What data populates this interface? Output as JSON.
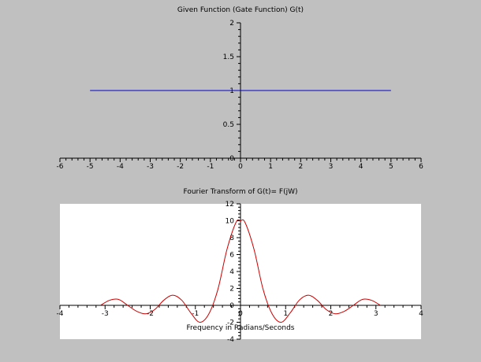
{
  "chart_data": [
    {
      "type": "line",
      "title": "Given Function (Gate Function) G(t)",
      "xlabel": "",
      "ylabel": "",
      "xlim": [
        -6,
        6
      ],
      "ylim": [
        0,
        2
      ],
      "xticks": [
        "-6",
        "-5",
        "-4",
        "-3",
        "-2",
        "-1",
        "0",
        "1",
        "2",
        "3",
        "4",
        "5",
        "6"
      ],
      "yticks": [
        "0",
        "0.5",
        "1",
        "1.5",
        "2"
      ],
      "grid": false,
      "series": [
        {
          "name": "",
          "color": "#0000cc",
          "x": [
            -5,
            5
          ],
          "y": [
            1,
            1
          ]
        }
      ]
    },
    {
      "type": "line",
      "title": "Fourier Transform of G(t)=  F(jW)",
      "xlabel": "Frequency in Radians/Seconds",
      "ylabel": "",
      "xlim": [
        -4,
        4
      ],
      "ylim": [
        -4,
        12
      ],
      "xticks": [
        "-4",
        "-3",
        "-2",
        "-1",
        "0",
        "1",
        "2",
        "3",
        "4"
      ],
      "yticks": [
        "-4",
        "-2",
        "0",
        "2",
        "4",
        "6",
        "8",
        "10",
        "12"
      ],
      "grid": false,
      "series": [
        {
          "name": "",
          "color": "#cc0000",
          "x": [
            -3.1,
            -2.9,
            -2.7,
            -2.5,
            -2.3,
            -2.1,
            -1.9,
            -1.7,
            -1.5,
            -1.3,
            -1.1,
            -0.9,
            -0.7,
            -0.5,
            -0.3,
            -0.1,
            0.0,
            0.1,
            0.3,
            0.5,
            0.7,
            0.9,
            1.1,
            1.3,
            1.5,
            1.7,
            1.9,
            2.1,
            2.3,
            2.5,
            2.7,
            2.9,
            3.1
          ],
          "y": [
            0.0,
            0.6,
            0.7,
            0.0,
            -0.7,
            -1.0,
            -0.5,
            0.6,
            1.2,
            0.6,
            -0.9,
            -2.0,
            -1.0,
            1.9,
            6.6,
            9.8,
            10.0,
            9.8,
            6.6,
            1.9,
            -1.0,
            -2.0,
            -0.9,
            0.6,
            1.2,
            0.6,
            -0.5,
            -1.0,
            -0.7,
            0.0,
            0.7,
            0.6,
            0.0
          ]
        }
      ]
    }
  ]
}
